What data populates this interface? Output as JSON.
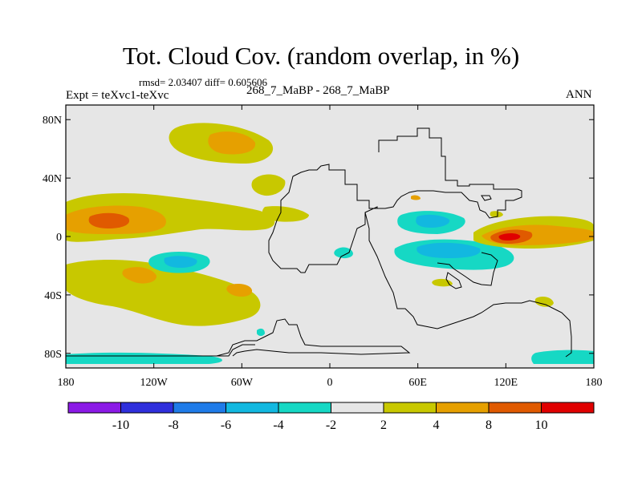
{
  "header": {
    "title": "Tot. Cloud Cov. (random overlap, in %)",
    "stats": "rmsd= 2.03407 diff= 0.605606",
    "experiment": "Expt = teXvc1-teXvc",
    "case": "268_7_MaBP - 268_7_MaBP",
    "season": "ANN"
  },
  "axes": {
    "lat_ticks": [
      {
        "value": 80,
        "label": "80N"
      },
      {
        "value": 40,
        "label": "40N"
      },
      {
        "value": 0,
        "label": "0"
      },
      {
        "value": -40,
        "label": "40S"
      },
      {
        "value": -80,
        "label": "80S"
      }
    ],
    "lon_ticks": [
      {
        "value": -180,
        "label": "180"
      },
      {
        "value": -120,
        "label": "120W"
      },
      {
        "value": -60,
        "label": "60W"
      },
      {
        "value": 0,
        "label": "0"
      },
      {
        "value": 60,
        "label": "60E"
      },
      {
        "value": 120,
        "label": "120E"
      },
      {
        "value": 180,
        "label": "180"
      }
    ],
    "lon_range": [
      -180,
      180
    ],
    "lat_range": [
      -90,
      90
    ]
  },
  "colorbar": {
    "boundaries": [
      -10,
      -8,
      -6,
      -4,
      -2,
      2,
      4,
      8,
      10
    ],
    "labels": [
      "-10",
      "-8",
      "-6",
      "-4",
      "-2",
      "2",
      "4",
      "8",
      "10"
    ],
    "colors": [
      "#8b1ae6",
      "#2f2fdc",
      "#1f7be8",
      "#12b8e0",
      "#16d8c4",
      "#e6e6e6",
      "#c8c800",
      "#e6a000",
      "#e05a00",
      "#e00000"
    ]
  },
  "colors": {
    "neutral": "#e6e6e6",
    "frame": "#000000",
    "coast": "#000000"
  }
}
